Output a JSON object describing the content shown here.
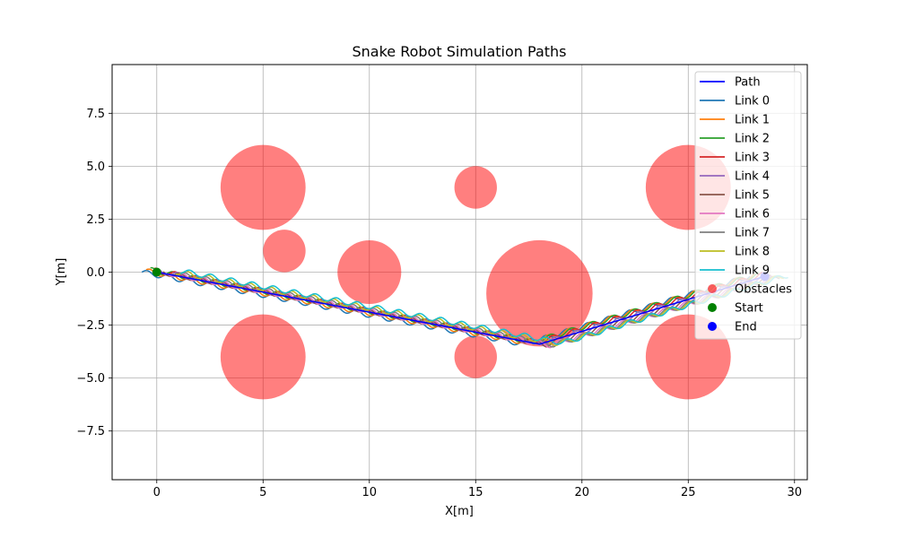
{
  "chart_data": {
    "type": "line",
    "title": "Snake Robot Simulation Paths",
    "xlabel": "X[m]",
    "ylabel": "Y[m]",
    "xlim": [
      -2.1,
      30.6
    ],
    "ylim": [
      -9.8,
      9.8
    ],
    "xticks": [
      0,
      5,
      10,
      15,
      20,
      25,
      30
    ],
    "xtick_labels": [
      "0",
      "5",
      "10",
      "15",
      "20",
      "25",
      "30"
    ],
    "yticks": [
      -7.5,
      -5.0,
      -2.5,
      0.0,
      2.5,
      5.0,
      7.5
    ],
    "ytick_labels": [
      "−7.5",
      "−5.0",
      "−2.5",
      "0.0",
      "2.5",
      "5.0",
      "7.5"
    ],
    "grid": true,
    "legend_position": "top-right",
    "path": {
      "name": "Path",
      "color": "#0000ff",
      "waypoints": [
        [
          0,
          0
        ],
        [
          18,
          -3.4
        ],
        [
          28.6,
          -0.2
        ]
      ]
    },
    "series": [
      {
        "name": "Link 0",
        "color": "#1f77b4",
        "offset": [
          -0.7,
          0.0
        ]
      },
      {
        "name": "Link 1",
        "color": "#ff7f0e",
        "offset": [
          -0.5,
          0.05
        ]
      },
      {
        "name": "Link 2",
        "color": "#2ca02c",
        "offset": [
          -0.3,
          0.1
        ]
      },
      {
        "name": "Link 3",
        "color": "#d62728",
        "offset": [
          -0.1,
          0.08
        ]
      },
      {
        "name": "Link 4",
        "color": "#9467bd",
        "offset": [
          0.1,
          0.03
        ]
      },
      {
        "name": "Link 5",
        "color": "#8c564b",
        "offset": [
          0.3,
          -0.02
        ]
      },
      {
        "name": "Link 6",
        "color": "#e377c2",
        "offset": [
          0.5,
          -0.05
        ]
      },
      {
        "name": "Link 7",
        "color": "#7f7f7f",
        "offset": [
          0.7,
          -0.03
        ]
      },
      {
        "name": "Link 8",
        "color": "#bcbd22",
        "offset": [
          0.9,
          0.02
        ]
      },
      {
        "name": "Link 9",
        "color": "#17becf",
        "offset": [
          1.1,
          0.06
        ]
      }
    ],
    "obstacles": {
      "name": "Obstacles",
      "color": "#ff0000",
      "alpha": 0.5,
      "circles": [
        {
          "x": 5,
          "y": 4,
          "r": 2
        },
        {
          "x": 5,
          "y": -4,
          "r": 2
        },
        {
          "x": 6,
          "y": 1,
          "r": 1
        },
        {
          "x": 10,
          "y": 0,
          "r": 1.5
        },
        {
          "x": 15,
          "y": 4,
          "r": 1
        },
        {
          "x": 15,
          "y": -4,
          "r": 1
        },
        {
          "x": 18,
          "y": -1,
          "r": 2.5
        },
        {
          "x": 25,
          "y": 4,
          "r": 2
        },
        {
          "x": 25,
          "y": -4,
          "r": 2
        }
      ]
    },
    "start": {
      "name": "Start",
      "x": 0,
      "y": 0,
      "color": "#008000"
    },
    "end": {
      "name": "End",
      "x": 28.6,
      "y": -0.2,
      "color": "#0000ff"
    }
  }
}
